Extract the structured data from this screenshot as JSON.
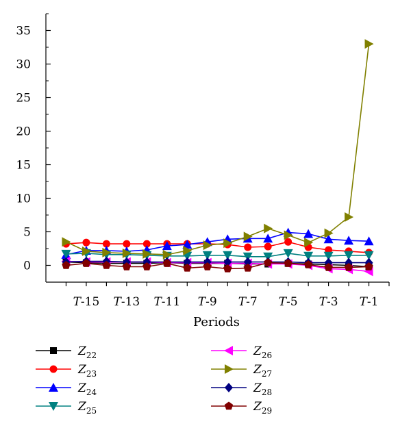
{
  "chart_data": {
    "type": "line",
    "title": "",
    "xlabel": "Periods",
    "ylabel": "",
    "ylim": [
      -2.5,
      37.5
    ],
    "yticks": [
      0,
      5,
      10,
      15,
      20,
      25,
      30,
      35
    ],
    "x": [
      16,
      15,
      14,
      13,
      12,
      11,
      10,
      9,
      8,
      7,
      6,
      5,
      4,
      3,
      2,
      1
    ],
    "xticks": [
      {
        "prefix": "T",
        "suffix": "-15",
        "x": 15
      },
      {
        "prefix": "T",
        "suffix": "-13",
        "x": 13
      },
      {
        "prefix": "T",
        "suffix": "-11",
        "x": 11
      },
      {
        "prefix": "T",
        "suffix": "-9",
        "x": 9
      },
      {
        "prefix": "T",
        "suffix": "-7",
        "x": 7
      },
      {
        "prefix": "T",
        "suffix": "-5",
        "x": 5
      },
      {
        "prefix": "T",
        "suffix": "-3",
        "x": 3
      },
      {
        "prefix": "T",
        "suffix": "-1",
        "x": 1
      }
    ],
    "legend_position": "bottom, two columns",
    "series": [
      {
        "name": "Z",
        "sub": "22",
        "color": "#000000",
        "marker": "square",
        "values": [
          0.5,
          0.4,
          0.3,
          0.3,
          0.3,
          0.4,
          0.3,
          0.3,
          0.3,
          0.2,
          0.2,
          0.3,
          0.2,
          0.1,
          0.0,
          -0.2
        ]
      },
      {
        "name": "Z",
        "sub": "23",
        "color": "#ff0000",
        "marker": "circle",
        "values": [
          3.2,
          3.4,
          3.2,
          3.2,
          3.2,
          3.2,
          3.2,
          3.2,
          3.1,
          2.7,
          2.8,
          3.5,
          2.7,
          2.3,
          2.1,
          1.9
        ]
      },
      {
        "name": "Z",
        "sub": "24",
        "color": "#0000ff",
        "marker": "triangle-up",
        "values": [
          1.6,
          2.2,
          2.2,
          2.1,
          2.3,
          2.9,
          3.1,
          3.5,
          3.9,
          4.0,
          4.0,
          4.9,
          4.7,
          3.9,
          3.7,
          3.6
        ]
      },
      {
        "name": "Z",
        "sub": "25",
        "color": "#008080",
        "marker": "triangle-down",
        "values": [
          1.7,
          1.8,
          1.6,
          1.6,
          1.5,
          1.4,
          1.4,
          1.5,
          1.5,
          1.3,
          1.3,
          1.8,
          1.4,
          1.4,
          1.5,
          1.5
        ]
      },
      {
        "name": "Z",
        "sub": "26",
        "color": "#ff00ff",
        "marker": "triangle-left",
        "values": [
          0.6,
          0.5,
          0.5,
          0.5,
          0.5,
          0.4,
          0.4,
          0.4,
          0.3,
          0.3,
          0.2,
          0.2,
          0.0,
          -0.5,
          -0.6,
          -0.9
        ]
      },
      {
        "name": "Z",
        "sub": "27",
        "color": "#808000",
        "marker": "triangle-right",
        "values": [
          3.5,
          2.1,
          1.9,
          1.8,
          1.7,
          1.6,
          2.2,
          3.0,
          3.3,
          4.3,
          5.5,
          4.5,
          3.4,
          4.8,
          7.2,
          33.0
        ]
      },
      {
        "name": "Z",
        "sub": "28",
        "color": "#000080",
        "marker": "diamond",
        "values": [
          0.5,
          0.6,
          0.6,
          0.5,
          0.5,
          0.5,
          0.5,
          0.5,
          0.5,
          0.5,
          0.5,
          0.5,
          0.4,
          0.4,
          0.4,
          0.4
        ]
      },
      {
        "name": "Z",
        "sub": "29",
        "color": "#800000",
        "marker": "pentagon",
        "values": [
          0.0,
          0.3,
          0.0,
          -0.2,
          -0.2,
          0.3,
          -0.4,
          -0.2,
          -0.5,
          -0.4,
          0.4,
          0.3,
          0.1,
          -0.3,
          -0.3,
          -0.2
        ]
      }
    ]
  }
}
